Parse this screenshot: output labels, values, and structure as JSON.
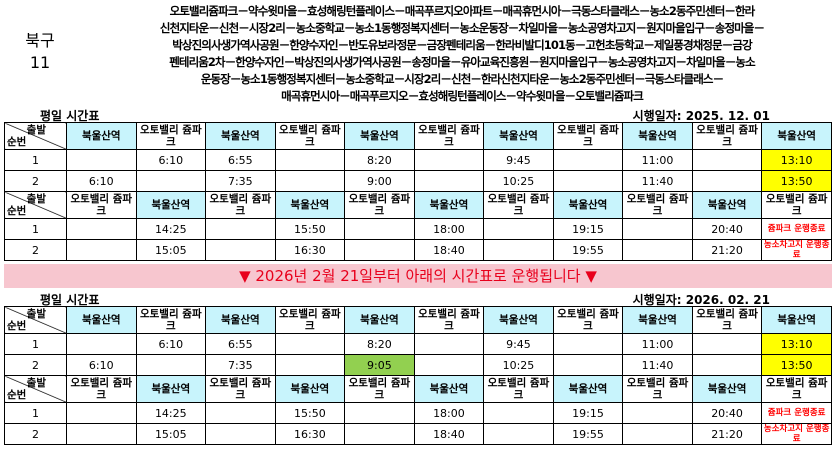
{
  "header": {
    "route": "북구",
    "number": "11",
    "description": [
      "오토밸리쥼파크－약수윗마을－효성해링턴플레이스－매곡푸르지오아파트－매곡휴먼시아－극동스타클래스－농소2동주민센터－한라",
      "신천지타운－신천－시장2리－농소중학교－농소1동행정복지센터－농소운동장－차일마을－농소공영차고지－원지마을입구－송정마을－",
      "박상진의사생가역사공원－한양수자인－반도유보라정문－금장펜테리움－한라비발디101동－고헌초등학교－제일풍경채정문－금강",
      "펜테리움2차－한양수자인－박상진의사생가역사공원－송정마을－유아교육진흥원－원지마을입구－농소공영차고지－차일마을－농소",
      "운동장－농소1동행정복지센터－농소중학교－시장2리－신천－한라신천지타운－농소2동주민센터－극동스타클래스－",
      "매곡휴먼시아－매곡푸르지오－효성해링턴플레이스－약수윗마을－오토밸리쥼파크"
    ]
  },
  "notice": "▼ 2026년 2월 21일부터 아래의 시간표로 운행됩니다 ▼",
  "sections": [
    {
      "title": "평일 시간표",
      "effective_date": "시행일자: 2025. 12. 01",
      "blocks": [
        {
          "corner_top": "출발",
          "corner_bottom": "순번",
          "columns": [
            {
              "name": "북울산역",
              "color": "#c8f4fc"
            },
            {
              "name": "오토밸리 쥼파크",
              "color": "#ffffff"
            },
            {
              "name": "북울산역",
              "color": "#c8f4fc"
            },
            {
              "name": "오토밸리 쥼파크",
              "color": "#ffffff"
            },
            {
              "name": "북울산역",
              "color": "#c8f4fc"
            },
            {
              "name": "오토밸리 쥼파크",
              "color": "#ffffff"
            },
            {
              "name": "북울산역",
              "color": "#c8f4fc"
            },
            {
              "name": "오토밸리 쥼파크",
              "color": "#ffffff"
            },
            {
              "name": "북울산역",
              "color": "#c8f4fc"
            },
            {
              "name": "오토밸리 쥼파크",
              "color": "#ffffff"
            },
            {
              "name": "북울산역",
              "color": "#c8f4fc"
            }
          ],
          "rows": [
            [
              "1",
              null,
              "6:10",
              "6:55",
              null,
              "8:20",
              null,
              "9:45",
              null,
              "11:00",
              null,
              {
                "text": "13:10",
                "color": "#ffff00"
              }
            ],
            [
              "2",
              "6:10",
              null,
              "7:35",
              null,
              "9:00",
              null,
              "10:25",
              null,
              "11:40",
              null,
              {
                "text": "13:50",
                "color": "#ffff00"
              }
            ]
          ]
        },
        {
          "corner_top": "출발",
          "corner_bottom": "순번",
          "columns": [
            {
              "name": "오토밸리 쥼파크",
              "color": "#ffffff"
            },
            {
              "name": "북울산역",
              "color": "#c8f4fc"
            },
            {
              "name": "오토밸리 쥼파크",
              "color": "#ffffff"
            },
            {
              "name": "북울산역",
              "color": "#c8f4fc"
            },
            {
              "name": "오토밸리 쥼파크",
              "color": "#ffffff"
            },
            {
              "name": "북울산역",
              "color": "#c8f4fc"
            },
            {
              "name": "오토밸리 쥼파크",
              "color": "#ffffff"
            },
            {
              "name": "북울산역",
              "color": "#c8f4fc"
            },
            {
              "name": "오토밸리 쥼파크",
              "color": "#ffffff"
            },
            {
              "name": "북울산역",
              "color": "#c8f4fc"
            },
            {
              "name": "오토밸리 쥼파크",
              "color": "#ffffff"
            }
          ],
          "rows": [
            [
              "1",
              null,
              "14:25",
              null,
              "15:50",
              null,
              "18:00",
              null,
              "19:15",
              null,
              "20:40",
              {
                "text": "쥼파크 운행종료",
                "text_color": "#ff0000"
              }
            ],
            [
              "2",
              null,
              "15:05",
              null,
              "16:30",
              null,
              "18:40",
              null,
              "19:55",
              null,
              "21:20",
              {
                "text": "농소차고지 운행종료",
                "text_color": "#ff0000"
              }
            ]
          ]
        }
      ]
    },
    {
      "title": "평일 시간표",
      "effective_date": "시행일자: 2026. 02. 21",
      "blocks": [
        {
          "corner_top": "출발",
          "corner_bottom": "순번",
          "columns": [
            {
              "name": "북울산역",
              "color": "#c8f4fc"
            },
            {
              "name": "오토밸리 쥼파크",
              "color": "#ffffff"
            },
            {
              "name": "북울산역",
              "color": "#c8f4fc"
            },
            {
              "name": "오토밸리 쥼파크",
              "color": "#ffffff"
            },
            {
              "name": "북울산역",
              "color": "#c8f4fc"
            },
            {
              "name": "오토밸리 쥼파크",
              "color": "#ffffff"
            },
            {
              "name": "북울산역",
              "color": "#c8f4fc"
            },
            {
              "name": "오토밸리 쥼파크",
              "color": "#ffffff"
            },
            {
              "name": "북울산역",
              "color": "#c8f4fc"
            },
            {
              "name": "오토밸리 쥼파크",
              "color": "#ffffff"
            },
            {
              "name": "북울산역",
              "color": "#c8f4fc"
            }
          ],
          "rows": [
            [
              "1",
              null,
              "6:10",
              "6:55",
              null,
              "8:20",
              null,
              "9:45",
              null,
              "11:00",
              null,
              {
                "text": "13:10",
                "color": "#ffff00"
              }
            ],
            [
              "2",
              "6:10",
              null,
              "7:35",
              null,
              {
                "text": "9:05",
                "color": "#92d050"
              },
              null,
              "10:25",
              null,
              "11:40",
              null,
              {
                "text": "13:50",
                "color": "#ffff00"
              }
            ]
          ]
        },
        {
          "corner_top": "출발",
          "corner_bottom": "순번",
          "columns": [
            {
              "name": "오토밸리 쥼파크",
              "color": "#ffffff"
            },
            {
              "name": "북울산역",
              "color": "#c8f4fc"
            },
            {
              "name": "오토밸리 쥼파크",
              "color": "#ffffff"
            },
            {
              "name": "북울산역",
              "color": "#c8f4fc"
            },
            {
              "name": "오토밸리 쥼파크",
              "color": "#ffffff"
            },
            {
              "name": "북울산역",
              "color": "#c8f4fc"
            },
            {
              "name": "오토밸리 쥼파크",
              "color": "#ffffff"
            },
            {
              "name": "북울산역",
              "color": "#c8f4fc"
            },
            {
              "name": "오토밸리 쥼파크",
              "color": "#ffffff"
            },
            {
              "name": "북울산역",
              "color": "#c8f4fc"
            },
            {
              "name": "오토밸리 쥼파크",
              "color": "#ffffff"
            }
          ],
          "rows": [
            [
              "1",
              null,
              "14:25",
              null,
              "15:50",
              null,
              "18:00",
              null,
              "19:15",
              null,
              "20:40",
              {
                "text": "쥼파크 운행종료",
                "text_color": "#ff0000"
              }
            ],
            [
              "2",
              null,
              "15:05",
              null,
              "16:30",
              null,
              "18:40",
              null,
              "19:55",
              null,
              "21:20",
              {
                "text": "농소차고지 운행종료",
                "text_color": "#ff0000"
              }
            ]
          ]
        }
      ]
    }
  ]
}
